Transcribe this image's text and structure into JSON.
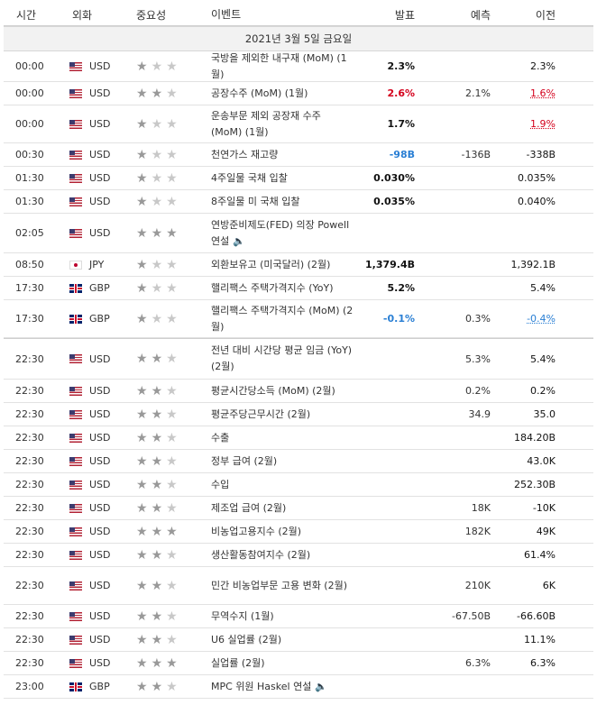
{
  "header": {
    "time": "시간",
    "currency": "외화",
    "importance": "중요성",
    "event": "이벤트",
    "actual": "발표",
    "forecast": "예측",
    "previous": "이전"
  },
  "date_label": "2021년 3월 5일 금요일",
  "colors": {
    "up": "#d4001c",
    "down": "#2a7fd4",
    "star_on": "#999999",
    "star_off": "#c8c8c8"
  },
  "rows": [
    {
      "time": "00:00",
      "flag": "us",
      "cur": "USD",
      "stars": 1,
      "event": "국방을 제외한 내구재 (MoM) (1월)",
      "actual": "2.3%",
      "actual_color": "plain",
      "forecast": "",
      "previous": "2.3%",
      "prev_color": "plain",
      "h": 34
    },
    {
      "time": "00:00",
      "flag": "us",
      "cur": "USD",
      "stars": 2,
      "event": "공장수주 (MoM) (1월)",
      "actual": "2.6%",
      "actual_color": "pos",
      "forecast": "2.1%",
      "previous": "1.6%",
      "prev_color": "pos",
      "h": 26
    },
    {
      "time": "00:00",
      "flag": "us",
      "cur": "USD",
      "stars": 1,
      "event": "운송부문 제외 공장재 수주 (MoM) (1월)",
      "actual": "1.7%",
      "actual_color": "plain",
      "forecast": "",
      "previous": "1.9%",
      "prev_color": "pos",
      "h": 42
    },
    {
      "time": "00:30",
      "flag": "us",
      "cur": "USD",
      "stars": 1,
      "event": "천연가스 재고량",
      "actual": "-98B",
      "actual_color": "neg",
      "forecast": "-136B",
      "previous": "-338B",
      "prev_color": "plain",
      "h": 26
    },
    {
      "time": "01:30",
      "flag": "us",
      "cur": "USD",
      "stars": 1,
      "event": "4주일물 국채 입찰",
      "actual": "0.030%",
      "actual_color": "plain",
      "forecast": "",
      "previous": "0.035%",
      "prev_color": "plain",
      "h": 26
    },
    {
      "time": "01:30",
      "flag": "us",
      "cur": "USD",
      "stars": 1,
      "event": "8주일물 미 국채 입찰",
      "actual": "0.035%",
      "actual_color": "plain",
      "forecast": "",
      "previous": "0.040%",
      "prev_color": "plain",
      "h": 26
    },
    {
      "time": "02:05",
      "flag": "us",
      "cur": "USD",
      "stars": 3,
      "event": "연방준비제도(FED) 의장 Powell 연설",
      "speech": true,
      "actual": "",
      "actual_color": "plain",
      "forecast": "",
      "previous": "",
      "prev_color": "plain",
      "h": 44
    },
    {
      "time": "08:50",
      "flag": "jp",
      "cur": "JPY",
      "stars": 1,
      "event": "외환보유고 (미국달러) (2월)",
      "actual": "1,379.4B",
      "actual_color": "plain",
      "forecast": "",
      "previous": "1,392.1B",
      "prev_color": "plain",
      "h": 26
    },
    {
      "time": "17:30",
      "flag": "gb",
      "cur": "GBP",
      "stars": 1,
      "event": "핼리팩스 주택가격지수 (YoY)",
      "actual": "5.2%",
      "actual_color": "plain",
      "forecast": "",
      "previous": "5.4%",
      "prev_color": "plain",
      "h": 26
    },
    {
      "time": "17:30",
      "flag": "gb",
      "cur": "GBP",
      "stars": 1,
      "event": "핼리팩스 주택가격지수 (MoM) (2월)",
      "actual": "-0.1%",
      "actual_color": "neg",
      "forecast": "0.3%",
      "previous": "-0.4%",
      "prev_color": "neg",
      "h": 42
    },
    {
      "time": "22:30",
      "flag": "us",
      "cur": "USD",
      "stars": 2,
      "event": "전년 대비 시간당 평균 임금 (YoY) (2월)",
      "actual": "",
      "actual_color": "plain",
      "forecast": "5.3%",
      "previous": "5.4%",
      "prev_color": "plain",
      "h": 46,
      "split": true
    },
    {
      "time": "22:30",
      "flag": "us",
      "cur": "USD",
      "stars": 2,
      "event": "평균시간당소득 (MoM) (2월)",
      "actual": "",
      "actual_color": "plain",
      "forecast": "0.2%",
      "previous": "0.2%",
      "prev_color": "plain",
      "h": 26
    },
    {
      "time": "22:30",
      "flag": "us",
      "cur": "USD",
      "stars": 2,
      "event": "평균주당근무시간 (2월)",
      "actual": "",
      "actual_color": "plain",
      "forecast": "34.9",
      "previous": "35.0",
      "prev_color": "plain",
      "h": 26
    },
    {
      "time": "22:30",
      "flag": "us",
      "cur": "USD",
      "stars": 2,
      "event": "수출",
      "actual": "",
      "actual_color": "plain",
      "forecast": "",
      "previous": "184.20B",
      "prev_color": "plain",
      "h": 26
    },
    {
      "time": "22:30",
      "flag": "us",
      "cur": "USD",
      "stars": 2,
      "event": "정부 급여 (2월)",
      "actual": "",
      "actual_color": "plain",
      "forecast": "",
      "previous": "43.0K",
      "prev_color": "plain",
      "h": 26
    },
    {
      "time": "22:30",
      "flag": "us",
      "cur": "USD",
      "stars": 2,
      "event": "수입",
      "actual": "",
      "actual_color": "plain",
      "forecast": "",
      "previous": "252.30B",
      "prev_color": "plain",
      "h": 26
    },
    {
      "time": "22:30",
      "flag": "us",
      "cur": "USD",
      "stars": 2,
      "event": "제조업 급여 (2월)",
      "actual": "",
      "actual_color": "plain",
      "forecast": "18K",
      "previous": "-10K",
      "prev_color": "plain",
      "h": 26
    },
    {
      "time": "22:30",
      "flag": "us",
      "cur": "USD",
      "stars": 3,
      "event": "비농업고용지수 (2월)",
      "actual": "",
      "actual_color": "plain",
      "forecast": "182K",
      "previous": "49K",
      "prev_color": "plain",
      "h": 26
    },
    {
      "time": "22:30",
      "flag": "us",
      "cur": "USD",
      "stars": 2,
      "event": "생산활동참여지수 (2월)",
      "actual": "",
      "actual_color": "plain",
      "forecast": "",
      "previous": "61.4%",
      "prev_color": "plain",
      "h": 26
    },
    {
      "time": "22:30",
      "flag": "us",
      "cur": "USD",
      "stars": 2,
      "event": "민간 비농업부문 고용 변화 (2월)",
      "actual": "",
      "actual_color": "plain",
      "forecast": "210K",
      "previous": "6K",
      "prev_color": "plain",
      "h": 42
    },
    {
      "time": "22:30",
      "flag": "us",
      "cur": "USD",
      "stars": 2,
      "event": "무역수지 (1월)",
      "actual": "",
      "actual_color": "plain",
      "forecast": "-67.50B",
      "previous": "-66.60B",
      "prev_color": "plain",
      "h": 26
    },
    {
      "time": "22:30",
      "flag": "us",
      "cur": "USD",
      "stars": 2,
      "event": "U6 실업률 (2월)",
      "actual": "",
      "actual_color": "plain",
      "forecast": "",
      "previous": "11.1%",
      "prev_color": "plain",
      "h": 26
    },
    {
      "time": "22:30",
      "flag": "us",
      "cur": "USD",
      "stars": 3,
      "event": "실업률 (2월)",
      "actual": "",
      "actual_color": "plain",
      "forecast": "6.3%",
      "previous": "6.3%",
      "prev_color": "plain",
      "h": 26
    },
    {
      "time": "23:00",
      "flag": "gb",
      "cur": "GBP",
      "stars": 2,
      "event": "MPC 위원 Haskel 연설",
      "speech": true,
      "actual": "",
      "actual_color": "plain",
      "forecast": "",
      "previous": "",
      "prev_color": "plain",
      "h": 26
    }
  ]
}
